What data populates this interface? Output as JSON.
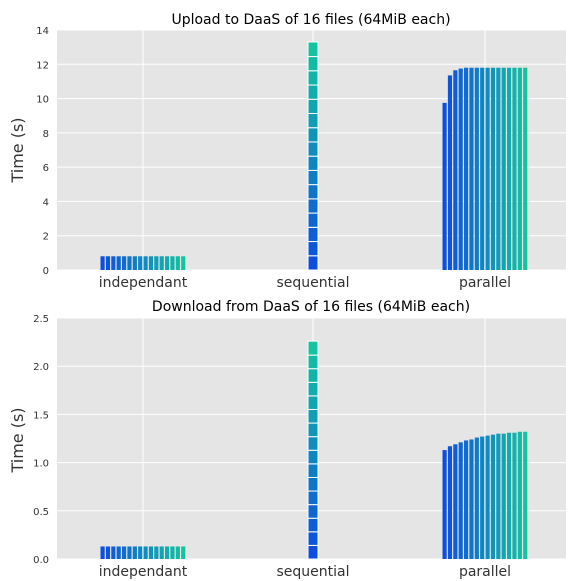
{
  "chart_data": [
    {
      "type": "bar",
      "title": "Upload to DaaS of 16 files (64MiB each)",
      "xlabel": "",
      "ylabel": "Time (s)",
      "ylim": [
        0,
        14
      ],
      "yticks": [
        0,
        2,
        4,
        6,
        8,
        10,
        12,
        14
      ],
      "ytick_labels": [
        "0",
        "2",
        "4",
        "6",
        "8",
        "10",
        "12",
        "14"
      ],
      "categories": [
        "independant",
        "sequential",
        "parallel"
      ],
      "grid": true,
      "layout": "independant and parallel: 16 side-by-side bars per file; sequential: 16 stacked segments",
      "colors": [
        "#0c4ee0",
        "#12c4a0"
      ],
      "groups": [
        {
          "category": "independant",
          "mode": "grouped",
          "values": [
            0.8,
            0.8,
            0.8,
            0.8,
            0.8,
            0.8,
            0.8,
            0.8,
            0.8,
            0.8,
            0.8,
            0.8,
            0.8,
            0.8,
            0.8,
            0.8
          ]
        },
        {
          "category": "sequential",
          "mode": "stacked",
          "values": [
            0.83,
            0.83,
            0.83,
            0.83,
            0.83,
            0.83,
            0.83,
            0.83,
            0.83,
            0.83,
            0.83,
            0.83,
            0.83,
            0.83,
            0.83,
            0.85
          ]
        },
        {
          "category": "parallel",
          "mode": "grouped",
          "values": [
            9.75,
            11.35,
            11.65,
            11.75,
            11.8,
            11.8,
            11.8,
            11.8,
            11.8,
            11.8,
            11.8,
            11.8,
            11.8,
            11.8,
            11.8,
            11.8
          ]
        }
      ]
    },
    {
      "type": "bar",
      "title": "Download from DaaS of 16 files (64MiB each)",
      "xlabel": "",
      "ylabel": "Time (s)",
      "ylim": [
        0,
        2.5
      ],
      "yticks": [
        0,
        0.5,
        1.0,
        1.5,
        2.0,
        2.5
      ],
      "ytick_labels": [
        "0.0",
        "0.5",
        "1.0",
        "1.5",
        "2.0",
        "2.5"
      ],
      "categories": [
        "independant",
        "sequential",
        "parallel"
      ],
      "grid": true,
      "layout": "independant and parallel: 16 side-by-side bars per file; sequential: 16 stacked segments",
      "colors": [
        "#0c4ee0",
        "#12c4a0"
      ],
      "groups": [
        {
          "category": "independant",
          "mode": "grouped",
          "values": [
            0.13,
            0.13,
            0.13,
            0.13,
            0.13,
            0.13,
            0.13,
            0.13,
            0.13,
            0.13,
            0.13,
            0.13,
            0.13,
            0.13,
            0.13,
            0.13
          ]
        },
        {
          "category": "sequential",
          "mode": "stacked",
          "values": [
            0.141,
            0.141,
            0.141,
            0.141,
            0.141,
            0.141,
            0.141,
            0.141,
            0.141,
            0.141,
            0.141,
            0.141,
            0.141,
            0.141,
            0.141,
            0.145
          ]
        },
        {
          "category": "parallel",
          "mode": "grouped",
          "values": [
            1.13,
            1.17,
            1.19,
            1.21,
            1.23,
            1.24,
            1.26,
            1.27,
            1.28,
            1.29,
            1.3,
            1.3,
            1.31,
            1.31,
            1.32,
            1.32
          ]
        }
      ]
    }
  ]
}
